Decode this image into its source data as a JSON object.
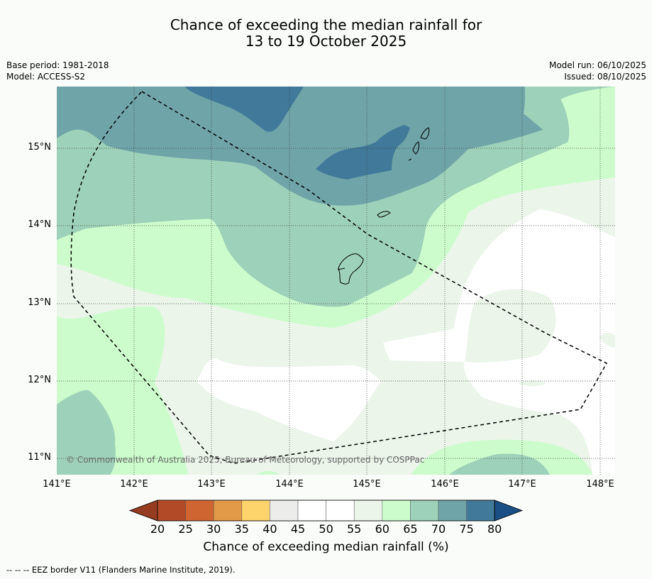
{
  "title": {
    "line1": "Chance of exceeding the median rainfall for",
    "line2": "13 to 19 October 2025"
  },
  "meta": {
    "base_period": "Base period: 1981-2018",
    "model": "Model: ACCESS-S2",
    "model_run": "Model run: 06/10/2025",
    "issued": "Issued: 08/10/2025"
  },
  "map": {
    "lon_ticks": [
      "141°E",
      "142°E",
      "143°E",
      "144°E",
      "145°E",
      "146°E",
      "147°E",
      "148°E"
    ],
    "lat_ticks": [
      "15°N",
      "14°N",
      "13°N",
      "12°N",
      "11°N"
    ],
    "copyright": "© Commonwealth of Australia 2025, Bureau of Meteorology, supported by COSPPac"
  },
  "colorbar": {
    "ticks": [
      "20",
      "25",
      "30",
      "35",
      "40",
      "45",
      "50",
      "55",
      "60",
      "65",
      "70",
      "75",
      "80"
    ],
    "colors": [
      "#b34a27",
      "#cf6530",
      "#e39a48",
      "#fdd36c",
      "#ececeb",
      "#ffffff",
      "#ffffff",
      "#ebf5ea",
      "#ccfccc",
      "#9ed1b9",
      "#6fa4a8",
      "#41799a"
    ],
    "under_color": "#963c20",
    "over_color": "#1a4f86",
    "label": "Chance of exceeding median rainfall (%)"
  },
  "footnote": "--  --  -- EEZ border V11 (Flanders Marine Institute, 2019)."
}
